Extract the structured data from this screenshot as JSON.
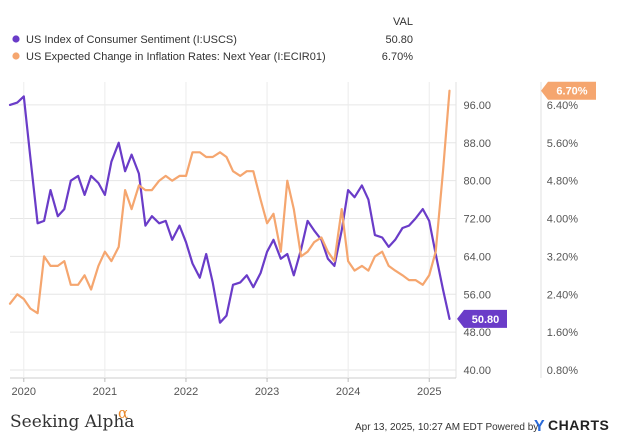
{
  "legend": {
    "header": "VAL",
    "entries": [
      {
        "name": "US Index of Consumer Sentiment (I:USCS)",
        "value": "50.80",
        "color": "#6a3cc8"
      },
      {
        "name": "US Expected Change in Inflation Rates: Next Year (I:ECIR01)",
        "value": "6.70%",
        "color": "#f5a66f"
      }
    ]
  },
  "footer": {
    "timestamp": "Apr 13, 2025, 10:27 AM EDT Powered by",
    "brand_left": "Seeking Alpha",
    "brand_alpha": "α",
    "brand_right_y": "Y",
    "brand_right": "CHARTS"
  },
  "chart_data": {
    "type": "line",
    "title": "",
    "x_ticks": [
      "2020",
      "2021",
      "2022",
      "2023",
      "2024",
      "2025"
    ],
    "xlim": [
      2019.83,
      2025.33
    ],
    "left_axis": {
      "ylim": [
        40,
        100
      ],
      "ticks": [
        "40.00",
        "48.00",
        "56.00",
        "64.00",
        "72.00",
        "80.00",
        "88.00",
        "96.00"
      ]
    },
    "right_axis": {
      "ylim": [
        0.8,
        6.8
      ],
      "ticks": [
        "0.80%",
        "1.60%",
        "2.40%",
        "3.20%",
        "4.00%",
        "4.80%",
        "5.60%",
        "6.40%"
      ]
    },
    "series": [
      {
        "name": "US Index of Consumer Sentiment (I:USCS)",
        "axis": "left",
        "color": "#6a3cc8",
        "end_label": "50.80",
        "x": [
          2019.83,
          2019.92,
          2020.0,
          2020.08,
          2020.17,
          2020.25,
          2020.33,
          2020.42,
          2020.5,
          2020.58,
          2020.67,
          2020.75,
          2020.83,
          2020.92,
          2021.0,
          2021.08,
          2021.17,
          2021.25,
          2021.33,
          2021.42,
          2021.5,
          2021.58,
          2021.67,
          2021.75,
          2021.83,
          2021.92,
          2022.0,
          2022.08,
          2022.17,
          2022.25,
          2022.33,
          2022.42,
          2022.5,
          2022.58,
          2022.67,
          2022.75,
          2022.83,
          2022.92,
          2023.0,
          2023.08,
          2023.17,
          2023.25,
          2023.33,
          2023.42,
          2023.5,
          2023.58,
          2023.67,
          2023.75,
          2023.83,
          2023.92,
          2024.0,
          2024.08,
          2024.17,
          2024.25,
          2024.33,
          2024.42,
          2024.5,
          2024.58,
          2024.67,
          2024.75,
          2024.83,
          2024.92,
          2025.0,
          2025.08,
          2025.17,
          2025.25
        ],
        "values": [
          96.0,
          96.5,
          97.8,
          85.0,
          71.0,
          71.5,
          78.0,
          72.5,
          74.0,
          80.0,
          81.0,
          77.0,
          81.0,
          79.5,
          77.0,
          84.0,
          88.0,
          82.0,
          85.5,
          81.5,
          70.5,
          72.5,
          71.0,
          71.5,
          67.5,
          70.5,
          67.0,
          62.5,
          59.5,
          64.5,
          58.5,
          50.0,
          51.5,
          58.0,
          58.5,
          60.0,
          57.5,
          60.5,
          65.0,
          67.5,
          63.5,
          64.5,
          60.0,
          65.5,
          71.5,
          69.5,
          67.5,
          63.5,
          62.0,
          69.5,
          78.0,
          76.5,
          79.0,
          76.0,
          68.5,
          68.0,
          66.0,
          67.5,
          70.0,
          70.5,
          72.0,
          74.0,
          71.5,
          64.5,
          57.0,
          50.8
        ]
      },
      {
        "name": "US Expected Change in Inflation Rates: Next Year (I:ECIR01)",
        "axis": "right",
        "color": "#f5a66f",
        "end_label": "6.70%",
        "x": [
          2019.83,
          2019.92,
          2020.0,
          2020.08,
          2020.17,
          2020.25,
          2020.33,
          2020.42,
          2020.5,
          2020.58,
          2020.67,
          2020.75,
          2020.83,
          2020.92,
          2021.0,
          2021.08,
          2021.17,
          2021.25,
          2021.33,
          2021.42,
          2021.5,
          2021.58,
          2021.67,
          2021.75,
          2021.83,
          2021.92,
          2022.0,
          2022.08,
          2022.17,
          2022.25,
          2022.33,
          2022.42,
          2022.5,
          2022.58,
          2022.67,
          2022.75,
          2022.83,
          2022.92,
          2023.0,
          2023.08,
          2023.17,
          2023.25,
          2023.33,
          2023.42,
          2023.5,
          2023.58,
          2023.67,
          2023.75,
          2023.83,
          2023.92,
          2024.0,
          2024.08,
          2024.17,
          2024.25,
          2024.33,
          2024.42,
          2024.5,
          2024.58,
          2024.67,
          2024.75,
          2024.83,
          2024.92,
          2025.0,
          2025.08,
          2025.17,
          2025.25
        ],
        "values": [
          2.2,
          2.4,
          2.3,
          2.1,
          2.0,
          3.2,
          3.0,
          3.0,
          3.1,
          2.6,
          2.6,
          2.8,
          2.5,
          3.0,
          3.3,
          3.1,
          3.4,
          4.6,
          4.2,
          4.7,
          4.6,
          4.6,
          4.8,
          4.9,
          4.8,
          4.9,
          4.9,
          5.4,
          5.4,
          5.3,
          5.3,
          5.4,
          5.3,
          5.0,
          4.9,
          5.0,
          5.0,
          4.4,
          3.9,
          4.1,
          3.3,
          4.8,
          4.2,
          3.2,
          3.3,
          3.5,
          3.6,
          3.3,
          3.1,
          4.2,
          3.1,
          2.9,
          3.0,
          2.9,
          3.2,
          3.3,
          3.0,
          2.9,
          2.8,
          2.7,
          2.7,
          2.6,
          2.8,
          3.3,
          5.0,
          6.7
        ]
      }
    ]
  }
}
